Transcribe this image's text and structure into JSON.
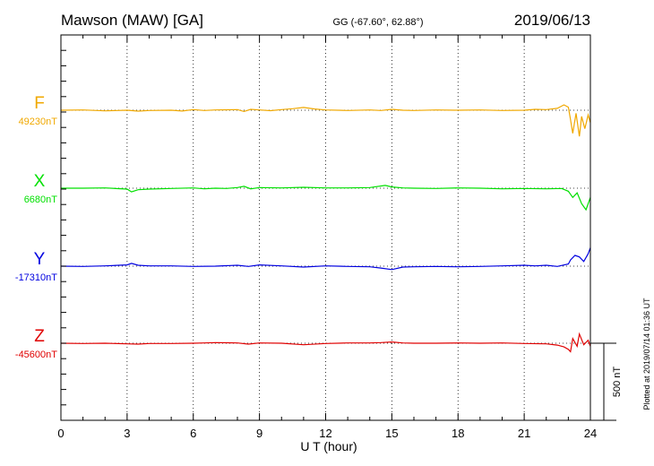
{
  "chart_data": {
    "type": "line",
    "station": "Mawson (MAW)  [GA]",
    "coords": "GG (-67.60°,  62.88°)",
    "date": "2019/06/13",
    "xlabel": "U T (hour)",
    "xlim": [
      0,
      24
    ],
    "xticks": [
      "0",
      "3",
      "6",
      "9",
      "12",
      "15",
      "18",
      "21",
      "24"
    ],
    "scale_label": "500 nT",
    "plotted_at": "Plotted at 2019/07/14 01:36 UT",
    "grid": true,
    "series": [
      {
        "name": "F",
        "baseline": "49230nT",
        "color": "#f0a800",
        "points": [
          [
            0,
            0
          ],
          [
            1,
            2
          ],
          [
            2,
            -4
          ],
          [
            3,
            0
          ],
          [
            3.5,
            -6
          ],
          [
            4,
            -2
          ],
          [
            5,
            0
          ],
          [
            5.5,
            -5
          ],
          [
            6,
            4
          ],
          [
            6.5,
            -2
          ],
          [
            7,
            2
          ],
          [
            8,
            4
          ],
          [
            8.3,
            -8
          ],
          [
            8.6,
            6
          ],
          [
            9,
            2
          ],
          [
            9.5,
            -3
          ],
          [
            10,
            4
          ],
          [
            10.5,
            10
          ],
          [
            11,
            18
          ],
          [
            11.5,
            8
          ],
          [
            12,
            2
          ],
          [
            13,
            -2
          ],
          [
            14,
            2
          ],
          [
            14.5,
            -2
          ],
          [
            15,
            6
          ],
          [
            15.5,
            0
          ],
          [
            16,
            -2
          ],
          [
            17,
            2
          ],
          [
            18,
            0
          ],
          [
            19,
            2
          ],
          [
            20,
            -2
          ],
          [
            21,
            0
          ],
          [
            21.5,
            6
          ],
          [
            22,
            4
          ],
          [
            22.5,
            12
          ],
          [
            22.8,
            35
          ],
          [
            23,
            20
          ],
          [
            23.1,
            -60
          ],
          [
            23.2,
            -150
          ],
          [
            23.35,
            -20
          ],
          [
            23.5,
            -170
          ],
          [
            23.6,
            -40
          ],
          [
            23.75,
            -120
          ],
          [
            23.9,
            -30
          ],
          [
            24,
            -80
          ]
        ]
      },
      {
        "name": "X",
        "baseline": "6680nT",
        "color": "#00e000",
        "points": [
          [
            0,
            0
          ],
          [
            1,
            0
          ],
          [
            2,
            2
          ],
          [
            3,
            -6
          ],
          [
            3.2,
            -24
          ],
          [
            3.5,
            -10
          ],
          [
            4,
            -6
          ],
          [
            5,
            -2
          ],
          [
            6,
            2
          ],
          [
            6.5,
            -4
          ],
          [
            7,
            0
          ],
          [
            7.5,
            -2
          ],
          [
            8,
            4
          ],
          [
            8.3,
            12
          ],
          [
            8.6,
            -4
          ],
          [
            9,
            4
          ],
          [
            10,
            2
          ],
          [
            11,
            6
          ],
          [
            12,
            2
          ],
          [
            13,
            2
          ],
          [
            14,
            4
          ],
          [
            14.7,
            18
          ],
          [
            15,
            8
          ],
          [
            15.5,
            2
          ],
          [
            16,
            0
          ],
          [
            17,
            -2
          ],
          [
            18,
            2
          ],
          [
            19,
            0
          ],
          [
            20,
            -4
          ],
          [
            21,
            -2
          ],
          [
            22,
            -4
          ],
          [
            22.7,
            -2
          ],
          [
            23,
            -20
          ],
          [
            23.2,
            -60
          ],
          [
            23.4,
            -30
          ],
          [
            23.6,
            -100
          ],
          [
            23.8,
            -140
          ],
          [
            24,
            -60
          ]
        ]
      },
      {
        "name": "Y",
        "baseline": "-17310nT",
        "color": "#0000e0",
        "points": [
          [
            0,
            0
          ],
          [
            1,
            -2
          ],
          [
            2,
            2
          ],
          [
            3,
            8
          ],
          [
            3.2,
            18
          ],
          [
            3.5,
            6
          ],
          [
            4,
            2
          ],
          [
            5,
            2
          ],
          [
            6,
            -2
          ],
          [
            7,
            0
          ],
          [
            8,
            6
          ],
          [
            8.5,
            -2
          ],
          [
            9,
            8
          ],
          [
            10,
            2
          ],
          [
            11,
            -6
          ],
          [
            12,
            2
          ],
          [
            13,
            -2
          ],
          [
            14,
            -4
          ],
          [
            14.5,
            -12
          ],
          [
            15,
            -22
          ],
          [
            15.5,
            -6
          ],
          [
            16,
            -4
          ],
          [
            17,
            -2
          ],
          [
            18,
            -4
          ],
          [
            19,
            -2
          ],
          [
            20,
            2
          ],
          [
            21,
            6
          ],
          [
            21.5,
            2
          ],
          [
            22,
            6
          ],
          [
            22.5,
            -2
          ],
          [
            23,
            14
          ],
          [
            23.1,
            40
          ],
          [
            23.3,
            70
          ],
          [
            23.5,
            60
          ],
          [
            23.7,
            30
          ],
          [
            23.9,
            80
          ],
          [
            24,
            120
          ]
        ]
      },
      {
        "name": "Z",
        "baseline": "-45600nT",
        "color": "#e00000",
        "points": [
          [
            0,
            0
          ],
          [
            1,
            -2
          ],
          [
            2,
            0
          ],
          [
            3,
            -4
          ],
          [
            3.5,
            -6
          ],
          [
            4,
            -2
          ],
          [
            5,
            -2
          ],
          [
            6,
            0
          ],
          [
            6.5,
            2
          ],
          [
            7,
            4
          ],
          [
            8,
            2
          ],
          [
            8.5,
            -6
          ],
          [
            9,
            2
          ],
          [
            10,
            0
          ],
          [
            11,
            -10
          ],
          [
            12,
            -2
          ],
          [
            13,
            2
          ],
          [
            14,
            2
          ],
          [
            14.5,
            4
          ],
          [
            15,
            8
          ],
          [
            15.5,
            2
          ],
          [
            16,
            0
          ],
          [
            17,
            0
          ],
          [
            18,
            2
          ],
          [
            19,
            0
          ],
          [
            20,
            2
          ],
          [
            21,
            -2
          ],
          [
            22,
            -4
          ],
          [
            22.5,
            -12
          ],
          [
            22.8,
            -24
          ],
          [
            23,
            -40
          ],
          [
            23.1,
            -55
          ],
          [
            23.2,
            30
          ],
          [
            23.4,
            -20
          ],
          [
            23.5,
            60
          ],
          [
            23.7,
            -10
          ],
          [
            23.9,
            20
          ],
          [
            24,
            -20
          ]
        ]
      }
    ]
  }
}
